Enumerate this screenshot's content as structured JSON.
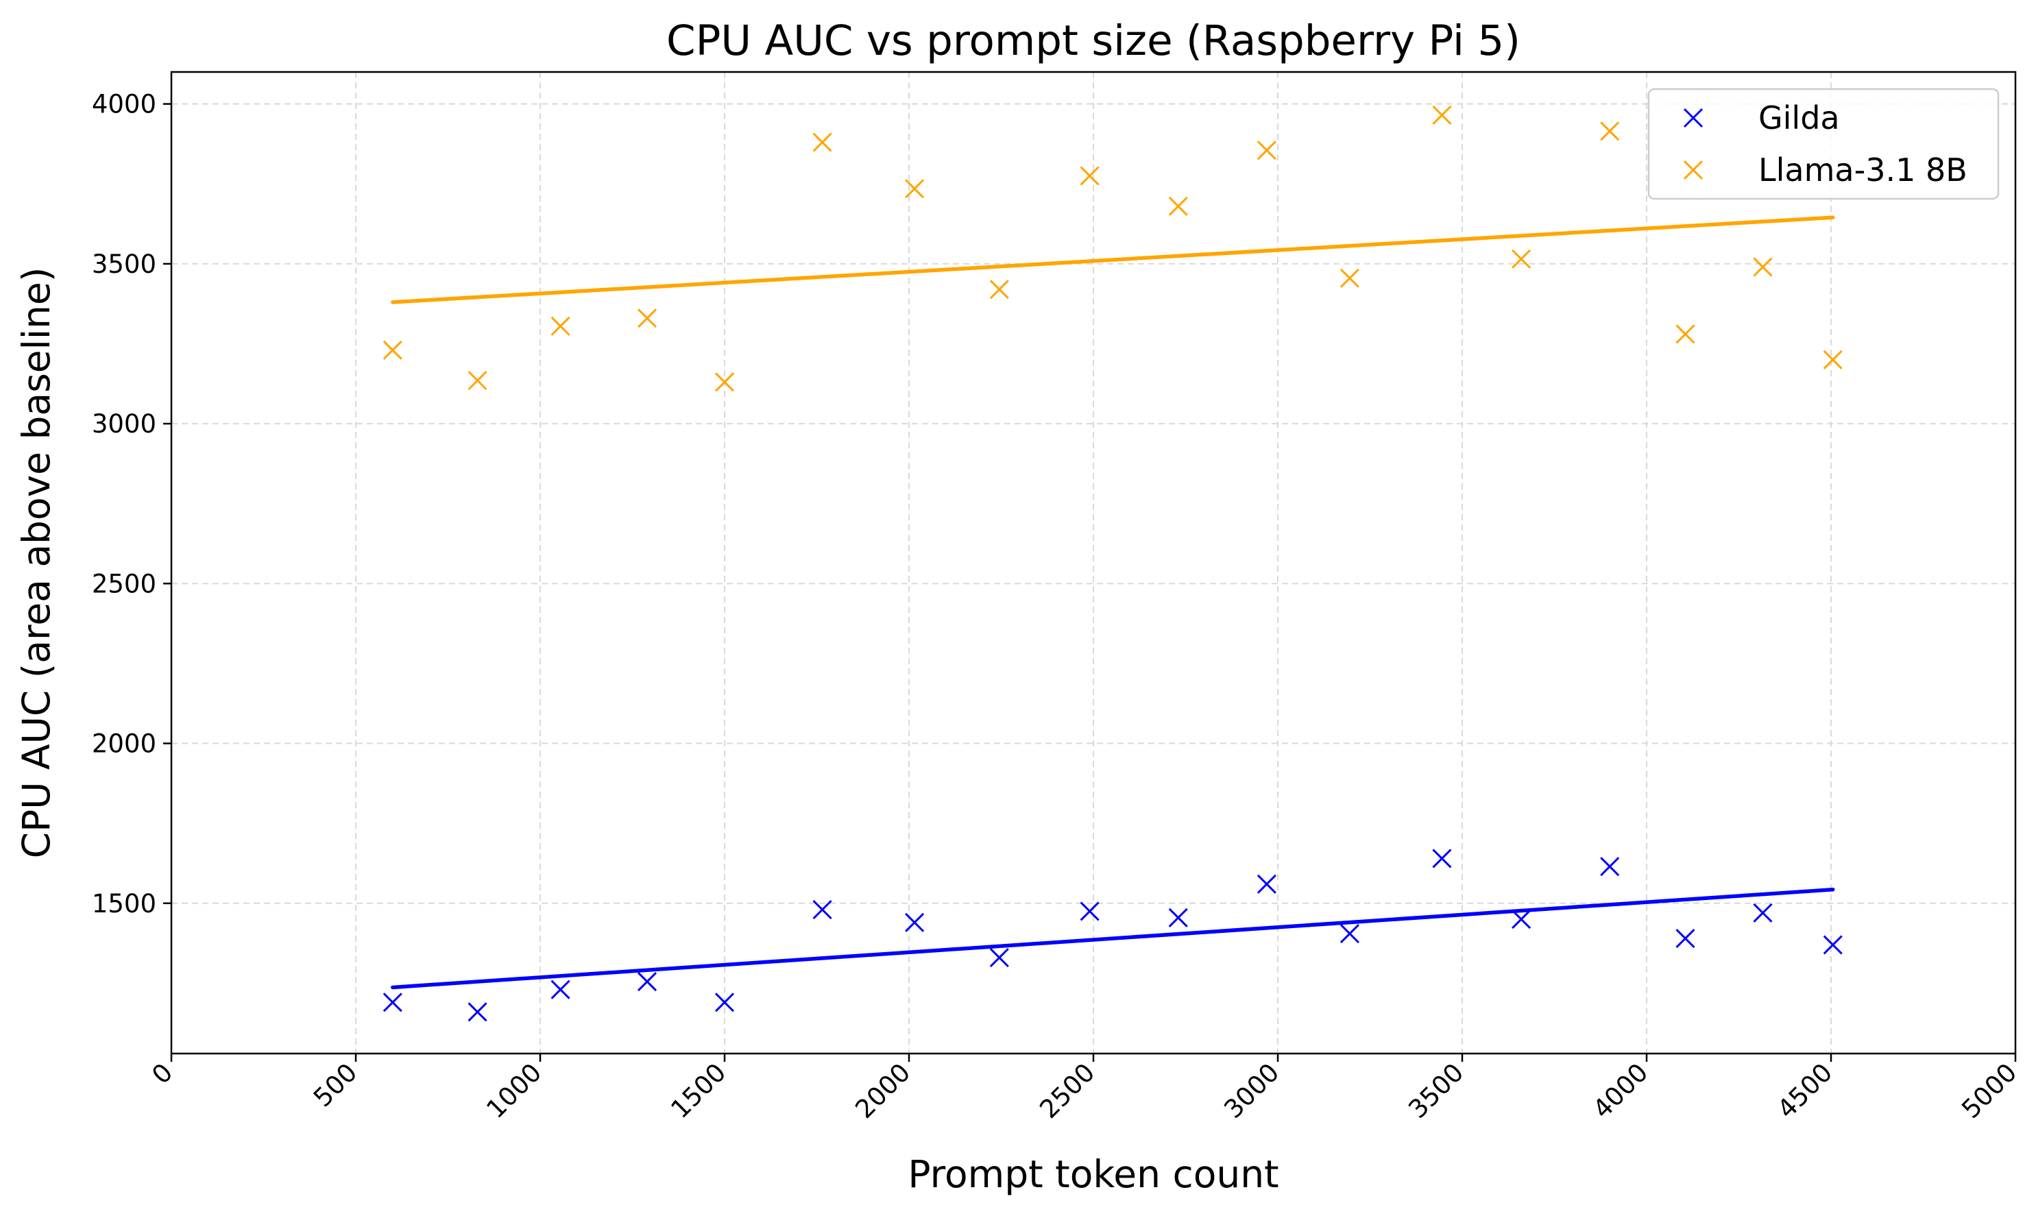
{
  "chart_data": {
    "type": "scatter",
    "title": "CPU AUC vs prompt size (Raspberry Pi 5)",
    "xlabel": "Prompt token count",
    "ylabel": "CPU AUC (area above baseline)",
    "xlim": [
      0,
      5000
    ],
    "ylim": [
      1030,
      4100
    ],
    "xticks": [
      0,
      500,
      1000,
      1500,
      2000,
      2500,
      3000,
      3500,
      4000,
      4500,
      5000
    ],
    "yticks": [
      1500,
      2000,
      2500,
      3000,
      3500,
      4000
    ],
    "grid": true,
    "legend_position": "top-right",
    "series": [
      {
        "name": "Gilda",
        "color": "#0000ff",
        "marker": "x",
        "x": [
          600,
          830,
          1055,
          1290,
          1500,
          1765,
          2015,
          2245,
          2490,
          2730,
          2970,
          3195,
          3445,
          3660,
          3900,
          4105,
          4315,
          4505
        ],
        "y": [
          1190,
          1160,
          1230,
          1255,
          1190,
          1480,
          1440,
          1330,
          1475,
          1455,
          1560,
          1405,
          1640,
          1450,
          1615,
          1390,
          1470,
          1370
        ],
        "trend": {
          "x": [
            600,
            4505
          ],
          "y": [
            1237,
            1543
          ]
        }
      },
      {
        "name": "Llama-3.1 8B",
        "color": "#ffa500",
        "marker": "x",
        "x": [
          600,
          830,
          1055,
          1290,
          1500,
          1765,
          2015,
          2245,
          2490,
          2730,
          2970,
          3195,
          3445,
          3660,
          3900,
          4105,
          4315,
          4505
        ],
        "y": [
          3230,
          3135,
          3305,
          3330,
          3130,
          3880,
          3735,
          3420,
          3775,
          3680,
          3855,
          3455,
          3965,
          3515,
          3915,
          3280,
          3490,
          3200
        ],
        "trend": {
          "x": [
            600,
            4505
          ],
          "y": [
            3380,
            3645
          ]
        }
      }
    ]
  }
}
